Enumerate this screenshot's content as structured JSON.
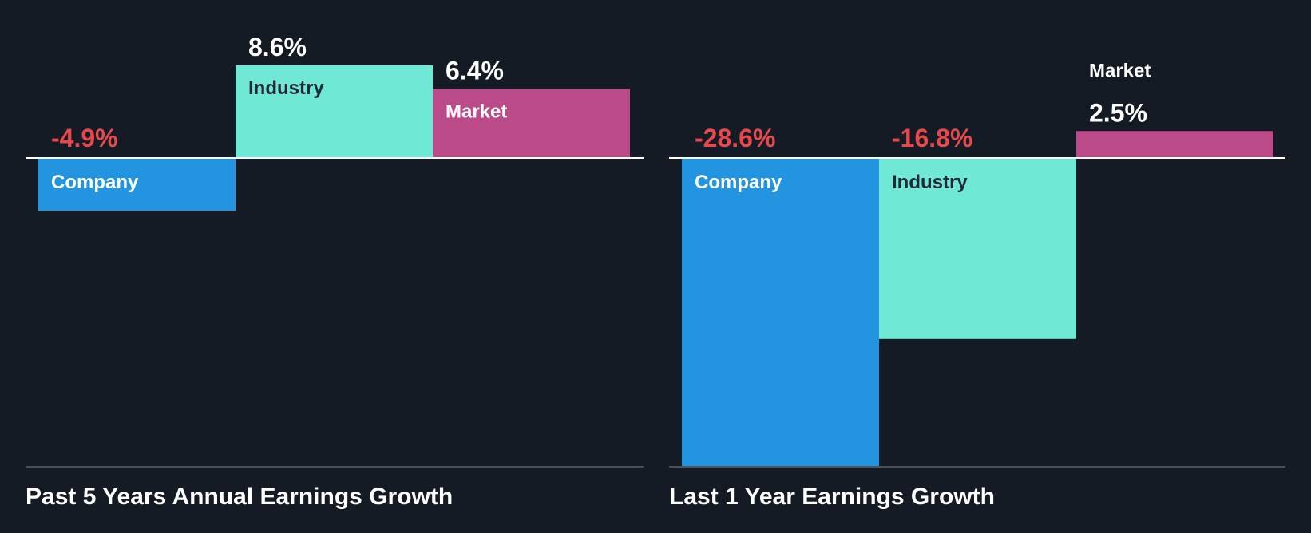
{
  "colors": {
    "background": "#151b24",
    "company": "#2394e0",
    "industry": "#6fe8d6",
    "market": "#bb4b88",
    "negative_text": "#e8474c",
    "positive_text": "#ffffff",
    "industry_label": "#1f2a36",
    "axis": "#ffffff",
    "baseline": "#4a5058"
  },
  "chart_data": [
    {
      "type": "bar",
      "title": "Past 5 Years Annual Earnings Growth",
      "categories": [
        "Company",
        "Industry",
        "Market"
      ],
      "values": [
        -4.9,
        8.6,
        6.4
      ],
      "value_labels": [
        "-4.9%",
        "8.6%",
        "6.4%"
      ],
      "ylim": [
        -29,
        8.6
      ],
      "xlabel": "",
      "ylabel": ""
    },
    {
      "type": "bar",
      "title": "Last 1 Year Earnings Growth",
      "categories": [
        "Company",
        "Industry",
        "Market"
      ],
      "values": [
        -28.6,
        -16.8,
        2.5
      ],
      "value_labels": [
        "-28.6%",
        "-16.8%",
        "2.5%"
      ],
      "ylim": [
        -28.6,
        8.6
      ],
      "xlabel": "",
      "ylabel": ""
    }
  ]
}
